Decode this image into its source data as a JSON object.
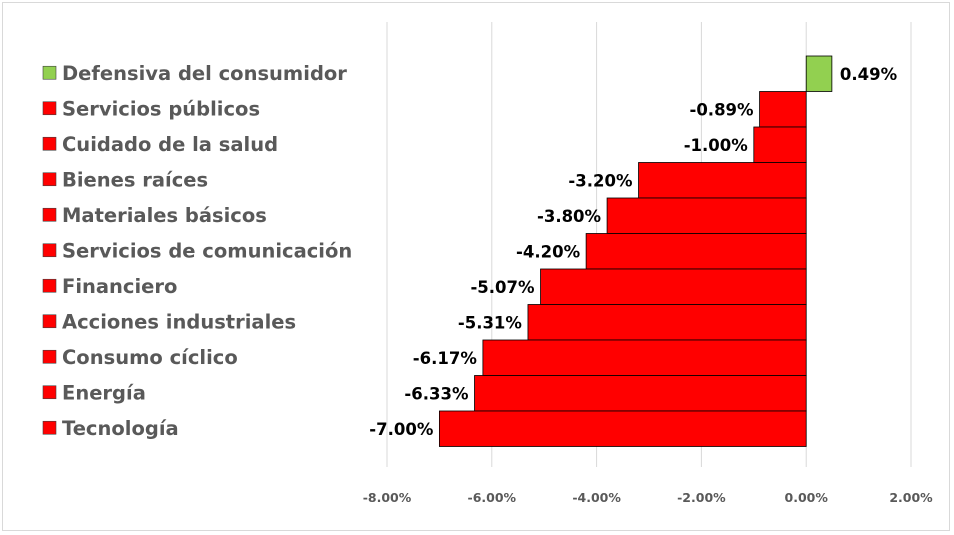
{
  "chart_data": {
    "type": "bar",
    "orientation": "horizontal",
    "title": "",
    "xlabel": "",
    "ylabel": "",
    "xlim": [
      -8,
      2
    ],
    "tick_step": 2,
    "tick_labels": [
      "-8.00%",
      "-6.00%",
      "-4.00%",
      "-2.00%",
      "0.00%",
      "2.00%"
    ],
    "grid": true,
    "legend_position": "left",
    "positive_color": "#92d050",
    "negative_color": "#ff0000",
    "categories": [
      "Defensiva del consumidor",
      "Servicios públicos",
      "Cuidado de la salud",
      "Bienes raíces",
      "Materiales básicos",
      "Servicios de comunicación",
      "Financiero",
      "Acciones industriales",
      "Consumo cíclico",
      "Energía",
      "Tecnología"
    ],
    "values": [
      0.49,
      -0.89,
      -1.0,
      -3.2,
      -3.8,
      -4.2,
      -5.07,
      -5.31,
      -6.17,
      -6.33,
      -7.0
    ],
    "value_labels": [
      "0.49%",
      "-0.89%",
      "-1.00%",
      "-3.20%",
      "-3.80%",
      "-4.20%",
      "-5.07%",
      "-5.31%",
      "-6.17%",
      "-6.33%",
      "-7.00%"
    ]
  }
}
